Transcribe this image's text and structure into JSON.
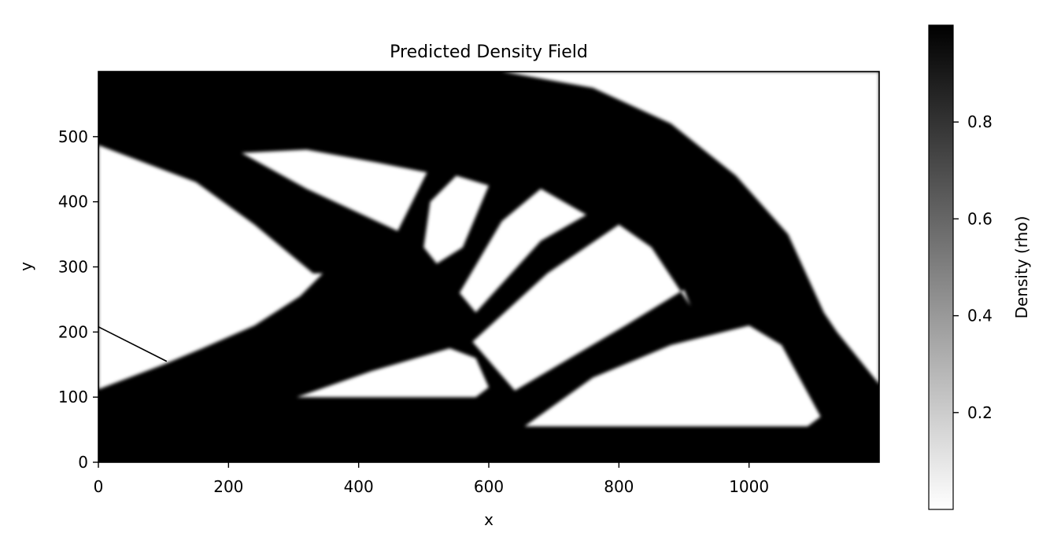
{
  "chart_data": {
    "type": "heatmap",
    "title": "Predicted Density Field",
    "xlabel": "x",
    "ylabel": "y",
    "xlim": [
      0,
      1200
    ],
    "ylim": [
      0,
      600
    ],
    "xticks": [
      0,
      200,
      400,
      600,
      800,
      1000
    ],
    "yticks": [
      0,
      100,
      200,
      300,
      400,
      500
    ],
    "colormap": "gray_r",
    "colorbar": {
      "label": "Density (rho)",
      "range": [
        0,
        1
      ],
      "ticks": [
        0.2,
        0.4,
        0.6,
        0.8
      ],
      "min_color": "#ffffff",
      "max_color": "#000000"
    },
    "solid_color": "#000000",
    "void_color": "#ffffff",
    "void_regions": [
      [
        [
          0,
          487
        ],
        [
          150,
          430
        ],
        [
          240,
          365
        ],
        [
          330,
          290
        ],
        [
          345,
          290
        ],
        [
          310,
          255
        ],
        [
          240,
          210
        ],
        [
          160,
          175
        ],
        [
          100,
          150
        ],
        [
          0,
          112
        ]
      ],
      [
        [
          220,
          475
        ],
        [
          320,
          480
        ],
        [
          430,
          460
        ],
        [
          505,
          445
        ],
        [
          460,
          355
        ],
        [
          320,
          420
        ]
      ],
      [
        [
          305,
          100
        ],
        [
          420,
          140
        ],
        [
          540,
          175
        ],
        [
          580,
          160
        ],
        [
          600,
          115
        ],
        [
          580,
          100
        ],
        [
          370,
          100
        ]
      ],
      [
        [
          510,
          400
        ],
        [
          550,
          440
        ],
        [
          600,
          425
        ],
        [
          560,
          330
        ],
        [
          520,
          305
        ],
        [
          500,
          330
        ]
      ],
      [
        [
          555,
          260
        ],
        [
          620,
          370
        ],
        [
          680,
          420
        ],
        [
          750,
          380
        ],
        [
          680,
          340
        ],
        [
          580,
          230
        ]
      ],
      [
        [
          575,
          185
        ],
        [
          640,
          110
        ],
        [
          810,
          210
        ],
        [
          900,
          265
        ],
        [
          910,
          240
        ],
        [
          850,
          330
        ],
        [
          800,
          365
        ],
        [
          690,
          290
        ]
      ],
      [
        [
          655,
          55
        ],
        [
          1090,
          55
        ],
        [
          1110,
          70
        ],
        [
          1050,
          180
        ],
        [
          1000,
          210
        ],
        [
          880,
          180
        ],
        [
          760,
          130
        ]
      ]
    ],
    "annotation_line": [
      [
        0,
        208
      ],
      [
        105,
        155
      ]
    ]
  }
}
